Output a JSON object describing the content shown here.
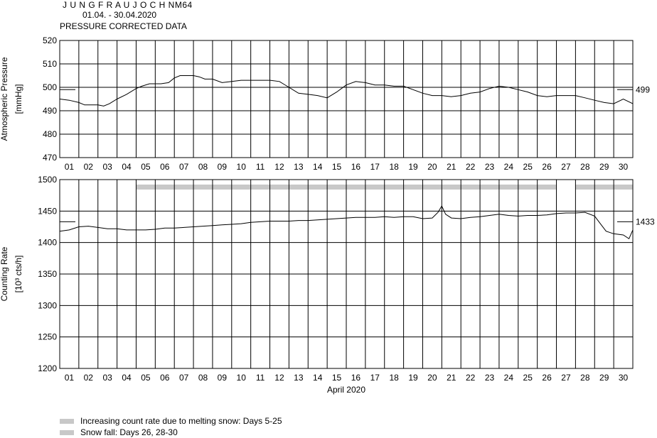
{
  "header": {
    "station": "J U N G F R A U J O C H  NM64",
    "period": "01.04. - 30.04.2020",
    "subtitle": "PRESSURE CORRECTED DATA"
  },
  "legend": [
    {
      "label": "Increasing count rate due to melting snow: Days 5-25",
      "color": "#c8c8c8"
    },
    {
      "label": "Snow fall: Days 26, 28-30",
      "color": "#c8c8c8"
    }
  ],
  "chart_data": [
    {
      "type": "line",
      "ylabel": "Atmospheric Pressure",
      "yunit": "[mmHg]",
      "ylim": [
        470,
        520
      ],
      "yticks": [
        "520",
        "510",
        "500",
        "490",
        "480",
        "470"
      ],
      "xlim": [
        0,
        30
      ],
      "categories": [
        "01",
        "02",
        "03",
        "04",
        "05",
        "06",
        "07",
        "08",
        "09",
        "10",
        "11",
        "12",
        "13",
        "14",
        "15",
        "16",
        "17",
        "18",
        "19",
        "20",
        "21",
        "22",
        "23",
        "24",
        "25",
        "26",
        "27",
        "28",
        "29",
        "30"
      ],
      "grid": true,
      "reference_value": "499",
      "series": [
        {
          "x": [
            0,
            0.5,
            1,
            1.3,
            1.6,
            2,
            2.3,
            2.6,
            3,
            3.5,
            4,
            4.3,
            4.7,
            5,
            5.3,
            5.7,
            6,
            6.3,
            6.6,
            7,
            7.3,
            7.6,
            8,
            8.5,
            9,
            9.5,
            10,
            10.5,
            11,
            11.5,
            12,
            12.5,
            13,
            13.5,
            14,
            14.5,
            15,
            15.5,
            16,
            16.5,
            17,
            17.5,
            18,
            18.5,
            19,
            19.5,
            20,
            20.5,
            21,
            21.5,
            22,
            22.5,
            23,
            23.5,
            24,
            24.5,
            25,
            25.5,
            26,
            26.5,
            27,
            27.5,
            28,
            28.5,
            29,
            29.5,
            30
          ],
          "y": [
            495,
            494.5,
            493.5,
            492.5,
            492.5,
            492.5,
            492,
            493,
            495,
            497,
            499.5,
            500.5,
            501.5,
            501.5,
            501.5,
            502,
            504,
            505,
            505,
            505,
            504.5,
            503.5,
            503.5,
            502,
            502.5,
            503,
            503,
            503,
            503,
            502.5,
            500,
            497.5,
            497,
            496.5,
            495.5,
            498,
            501,
            502.5,
            502,
            501,
            501,
            500.5,
            500.5,
            499,
            497.5,
            496.5,
            496.5,
            496,
            496.5,
            497.5,
            498,
            499.5,
            500.5,
            500,
            499,
            498,
            496.5,
            496,
            496.5,
            496.5,
            496.5,
            495.5,
            494.5,
            493.5,
            493,
            495,
            493
          ]
        }
      ]
    },
    {
      "type": "line",
      "ylabel": "Counting Rate",
      "yunit": "[10³ cts/h]",
      "ylim": [
        1200,
        1500
      ],
      "yticks": [
        "1500",
        "1450",
        "1400",
        "1350",
        "1300",
        "1250",
        "1200"
      ],
      "xlim": [
        0,
        30
      ],
      "xlabel": "April 2020",
      "categories": [
        "01",
        "02",
        "03",
        "04",
        "05",
        "06",
        "07",
        "08",
        "09",
        "10",
        "11",
        "12",
        "13",
        "14",
        "15",
        "16",
        "17",
        "18",
        "19",
        "20",
        "21",
        "22",
        "23",
        "24",
        "25",
        "26",
        "27",
        "28",
        "29",
        "30"
      ],
      "grid": true,
      "reference_value": "1433",
      "snow_bars": [
        {
          "from": 4,
          "to": 26,
          "color": "#c8c8c8"
        },
        {
          "from": 27,
          "to": 30,
          "color": "#c8c8c8"
        }
      ],
      "series": [
        {
          "x": [
            0,
            0.5,
            1,
            1.5,
            2,
            2.5,
            3,
            3.5,
            4,
            4.5,
            5,
            5.5,
            6,
            6.5,
            7,
            7.5,
            8,
            8.5,
            9,
            9.5,
            10,
            10.5,
            11,
            11.5,
            12,
            12.5,
            13,
            13.5,
            14,
            14.5,
            15,
            15.5,
            16,
            16.5,
            17,
            17.5,
            18,
            18.5,
            19,
            19.5,
            19.8,
            20,
            20.2,
            20.5,
            21,
            21.5,
            22,
            22.5,
            23,
            23.5,
            24,
            24.5,
            25,
            25.5,
            26,
            26.5,
            27,
            27.5,
            28,
            28.3,
            28.6,
            29,
            29.5,
            29.8,
            30
          ],
          "y": [
            1418,
            1420,
            1425,
            1426,
            1424,
            1422,
            1422,
            1420,
            1420,
            1420,
            1421,
            1423,
            1423,
            1424,
            1425,
            1426,
            1427,
            1428,
            1429,
            1430,
            1432,
            1433,
            1434,
            1434,
            1434,
            1435,
            1435,
            1436,
            1437,
            1438,
            1439,
            1440,
            1440,
            1440,
            1441,
            1440,
            1441,
            1441,
            1438,
            1439,
            1448,
            1458,
            1445,
            1439,
            1438,
            1440,
            1441,
            1443,
            1445,
            1443,
            1442,
            1443,
            1443,
            1444,
            1446,
            1447,
            1447,
            1448,
            1442,
            1430,
            1418,
            1414,
            1412,
            1406,
            1420
          ]
        }
      ]
    }
  ]
}
